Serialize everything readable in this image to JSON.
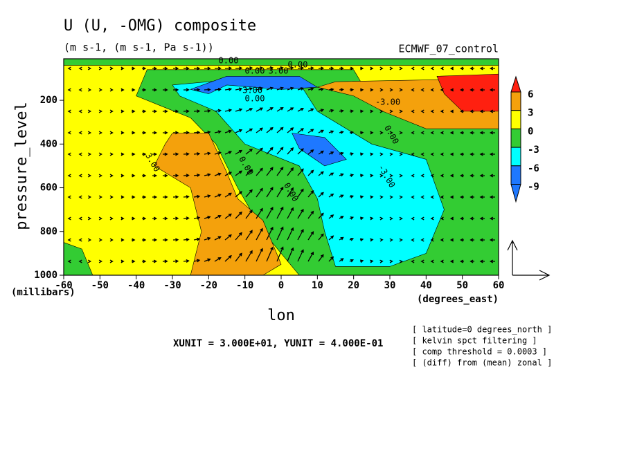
{
  "chart_data": {
    "type": "contour",
    "title": "U (U, -OMG) composite",
    "subtitle": "(m s-1, (m s-1, Pa s-1))",
    "dataset": "ECMWF_07_control",
    "x_label": "lon",
    "x_units": "(degrees_east)",
    "y_label": "pressure_level",
    "y_units": "(millibars)",
    "xlim": [
      -60,
      60
    ],
    "xticks": [
      -60,
      -50,
      -40,
      -30,
      -20,
      -10,
      0,
      10,
      20,
      30,
      40,
      50,
      60
    ],
    "ylim": [
      1000,
      10
    ],
    "yticks": [
      200,
      400,
      600,
      800,
      1000
    ],
    "levels": [
      -9,
      -6,
      -3,
      0,
      3,
      6
    ],
    "level_colors": [
      "#1e78ff",
      "#1e78ff",
      "#00ffff",
      "#33cc33",
      "#ffff00",
      "#f4a10c",
      "#ff2010"
    ],
    "contour_labels": [
      "0.00",
      "0.00",
      "3.00",
      "0.00",
      "-3.00",
      "0.00",
      "-3.00",
      "0.00",
      "3.00",
      "0.00",
      "0.00",
      "-3.00"
    ],
    "vector_units": "XUNIT = 3.000E+01, YUNIT = 4.000E-01",
    "notes": [
      "[ latitude=0 degrees_north ]",
      "[ kelvin spct filtering ]",
      "[ comp threshold = 0.0003 ]",
      "[ (diff) from (mean) zonal ]"
    ]
  }
}
